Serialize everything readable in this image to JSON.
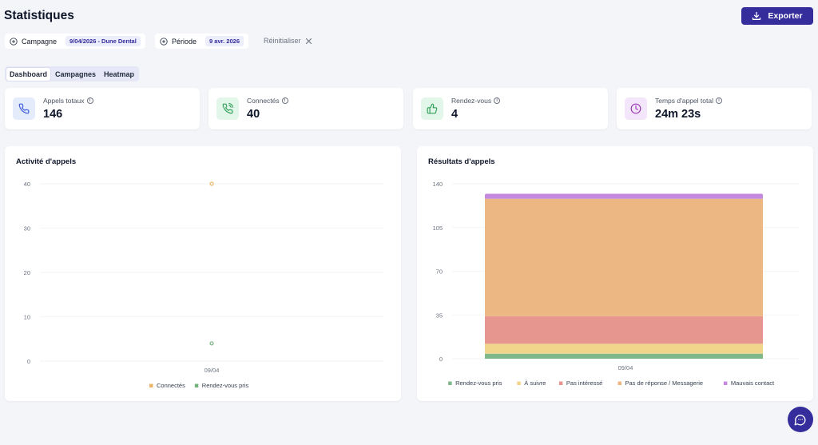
{
  "header": {
    "title": "Statistiques",
    "export_label": "Exporter"
  },
  "filters": {
    "campaign": {
      "label": "Campagne",
      "value": "9/04/2026 - Dune Dental"
    },
    "period": {
      "label": "Période",
      "value": "9 avr. 2026"
    },
    "reset_label": "Réinitialiser"
  },
  "tabs": [
    "Dashboard",
    "Campagnes",
    "Heatmap"
  ],
  "active_tab": "Dashboard",
  "stats": [
    {
      "label": "Appels totaux",
      "value": "146",
      "icon": "phone-icon",
      "bg": "#e4ebfb",
      "color": "#3b5bdb"
    },
    {
      "label": "Connectés",
      "value": "40",
      "icon": "phone-call-icon",
      "bg": "#e3f6ea",
      "color": "#2f9e58"
    },
    {
      "label": "Rendez-vous",
      "value": "4",
      "icon": "thumbs-up-icon",
      "bg": "#e3f6ea",
      "color": "#2f9e58"
    },
    {
      "label": "Temps d'appel total",
      "value": "24m 23s",
      "icon": "clock-icon",
      "bg": "#f3e6fb",
      "color": "#9c36b5"
    }
  ],
  "chart_data": [
    {
      "type": "scatter",
      "title": "Activité d'appels",
      "categories": [
        "09/04"
      ],
      "yticks": [
        0,
        10,
        20,
        30,
        40
      ],
      "ylim": [
        0,
        40
      ],
      "series": [
        {
          "name": "Connectés",
          "values": [
            40
          ],
          "color": "#eab768"
        },
        {
          "name": "Rendez-vous pris",
          "values": [
            4
          ],
          "color": "#74b47c"
        }
      ],
      "legend": "bottom"
    },
    {
      "type": "bar",
      "stacked": true,
      "title": "Résultats d'appels",
      "categories": [
        "09/04"
      ],
      "yticks": [
        0,
        35,
        70,
        105,
        140
      ],
      "ylim": [
        0,
        140
      ],
      "series": [
        {
          "name": "Rendez-vous pris",
          "values": [
            4
          ],
          "color": "#7fb88a"
        },
        {
          "name": "À suivre",
          "values": [
            8
          ],
          "color": "#f0d58a"
        },
        {
          "name": "Pas intéressé",
          "values": [
            22
          ],
          "color": "#e7958f"
        },
        {
          "name": "Pas de réponse / Messagerie",
          "values": [
            94
          ],
          "color": "#edb784"
        },
        {
          "name": "Mauvais contact",
          "values": [
            4
          ],
          "color": "#c488de"
        }
      ],
      "legend": "bottom"
    }
  ]
}
